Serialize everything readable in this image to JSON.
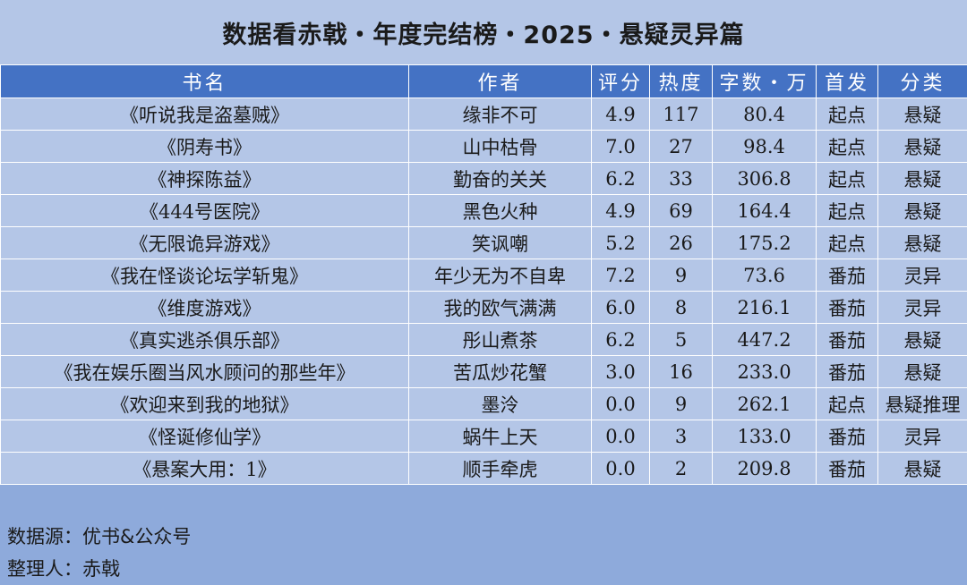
{
  "title": "数据看赤戟・年度完结榜・2025・悬疑灵异篇",
  "headers": [
    "书名",
    "作者",
    "评分",
    "热度",
    "字数・万",
    "首发",
    "分类"
  ],
  "rows": [
    [
      "《听说我是盗墓贼》",
      "缘非不可",
      "4.9",
      "117",
      "80.4",
      "起点",
      "悬疑"
    ],
    [
      "《阴寿书》",
      "山中枯骨",
      "7.0",
      "27",
      "98.4",
      "起点",
      "悬疑"
    ],
    [
      "《神探陈益》",
      "勤奋的关关",
      "6.2",
      "33",
      "306.8",
      "起点",
      "悬疑"
    ],
    [
      "《444号医院》",
      "黑色火种",
      "4.9",
      "69",
      "164.4",
      "起点",
      "悬疑"
    ],
    [
      "《无限诡异游戏》",
      "笑讽嘲",
      "5.2",
      "26",
      "175.2",
      "起点",
      "悬疑"
    ],
    [
      "《我在怪谈论坛学斩鬼》",
      "年少无为不自卑",
      "7.2",
      "9",
      "73.6",
      "番茄",
      "灵异"
    ],
    [
      "《维度游戏》",
      "我的欧气满满",
      "6.0",
      "8",
      "216.1",
      "番茄",
      "灵异"
    ],
    [
      "《真实逃杀俱乐部》",
      "彤山煮茶",
      "6.2",
      "5",
      "447.2",
      "番茄",
      "悬疑"
    ],
    [
      "《我在娱乐圈当风水顾问的那些年》",
      "苦瓜炒花蟹",
      "3.0",
      "16",
      "233.0",
      "番茄",
      "悬疑"
    ],
    [
      "《欢迎来到我的地狱》",
      "墨泠",
      "0.0",
      "9",
      "262.1",
      "起点",
      "悬疑推理"
    ],
    [
      "《怪诞修仙学》",
      "蜗牛上天",
      "0.0",
      "3",
      "133.0",
      "番茄",
      "灵异"
    ],
    [
      "《悬案大用：1》",
      "顺手牵虎",
      "0.0",
      "2",
      "209.8",
      "番茄",
      "悬疑"
    ]
  ],
  "footer": {
    "source": "数据源：优书&公众号",
    "compiler": "整理人：赤戟"
  }
}
